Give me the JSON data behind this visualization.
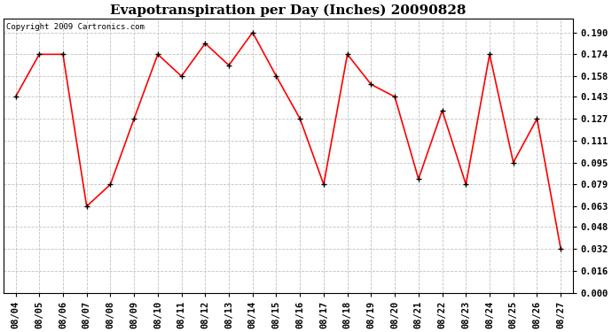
{
  "title": "Evapotranspiration per Day (Inches) 20090828",
  "copyright_text": "Copyright 2009 Cartronics.com",
  "dates": [
    "08/04",
    "08/05",
    "08/06",
    "08/07",
    "08/08",
    "08/09",
    "08/10",
    "08/11",
    "08/12",
    "08/13",
    "08/14",
    "08/15",
    "08/16",
    "08/17",
    "08/18",
    "08/19",
    "08/20",
    "08/21",
    "08/22",
    "08/23",
    "08/24",
    "08/25",
    "08/26",
    "08/27"
  ],
  "values": [
    0.143,
    0.174,
    0.174,
    0.063,
    0.079,
    0.127,
    0.174,
    0.158,
    0.182,
    0.166,
    0.19,
    0.158,
    0.127,
    0.079,
    0.174,
    0.152,
    0.143,
    0.083,
    0.133,
    0.079,
    0.174,
    0.095,
    0.127,
    0.032
  ],
  "ylim_min": 0.0,
  "ylim_max": 0.2,
  "yticks": [
    0.0,
    0.016,
    0.032,
    0.048,
    0.063,
    0.079,
    0.095,
    0.111,
    0.127,
    0.143,
    0.158,
    0.174,
    0.19
  ],
  "line_color": "red",
  "marker": "+",
  "marker_color": "black",
  "marker_size": 5,
  "line_width": 1.2,
  "bg_color": "#ffffff",
  "plot_bg_color": "#ffffff",
  "grid_color": "#c0c0c0",
  "title_fontsize": 11,
  "copyright_fontsize": 6.5,
  "tick_fontsize": 7.5,
  "tick_font": "monospace"
}
